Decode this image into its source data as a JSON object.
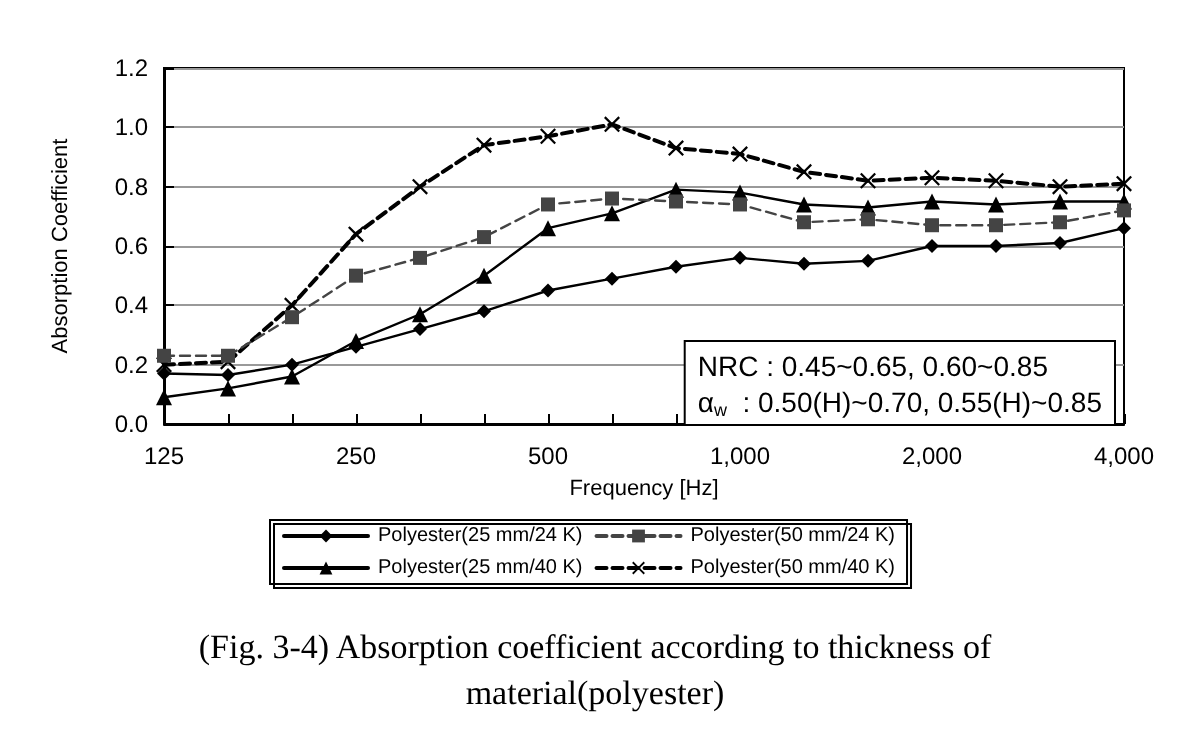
{
  "chart_data": {
    "type": "line",
    "title": "(Fig. 3-4) Absorption coefficient according to thickness of material(polyester)",
    "xlabel": "Frequency [Hz]",
    "ylabel": "Absorption Coefficient",
    "categories": [
      "125",
      null,
      null,
      "250",
      null,
      null,
      "500",
      null,
      null,
      "1,000",
      null,
      null,
      "2,000",
      null,
      null,
      "4,000"
    ],
    "series": [
      {
        "name": "Polyester(25 mm/24 K)",
        "color": "#000000",
        "marker": "diamond",
        "line_style": "solid",
        "values": [
          0.17,
          0.165,
          0.2,
          0.26,
          0.32,
          0.38,
          0.45,
          0.49,
          0.53,
          0.56,
          0.54,
          0.55,
          0.6,
          0.6,
          0.61,
          0.66
        ]
      },
      {
        "name": "Polyester(50 mm/24 K)",
        "color": "#444444",
        "marker": "square",
        "line_style": "dashed",
        "values": [
          0.23,
          0.23,
          0.36,
          0.5,
          0.56,
          0.63,
          0.74,
          0.76,
          0.75,
          0.74,
          0.68,
          0.69,
          0.67,
          0.67,
          0.68,
          0.72
        ]
      },
      {
        "name": "Polyester(25 mm/40 K)",
        "color": "#000000",
        "marker": "triangle",
        "line_style": "solid",
        "values": [
          0.09,
          0.12,
          0.16,
          0.28,
          0.37,
          0.5,
          0.66,
          0.71,
          0.79,
          0.78,
          0.74,
          0.73,
          0.75,
          0.74,
          0.75,
          0.75
        ]
      },
      {
        "name": "Polyester(50 mm/40 K)",
        "color": "#000000",
        "marker": "cross",
        "line_style": "dashed",
        "values": [
          0.2,
          0.21,
          0.4,
          0.64,
          0.8,
          0.94,
          0.97,
          1.01,
          0.93,
          0.91,
          0.85,
          0.82,
          0.83,
          0.82,
          0.8,
          0.81
        ]
      }
    ],
    "ylim": [
      0,
      1.2
    ],
    "yticks": [
      {
        "value": 0,
        "label": "0.0"
      },
      {
        "value": 0.2,
        "label": "0.2"
      },
      {
        "value": 0.4,
        "label": "0.4"
      },
      {
        "value": 0.6,
        "label": "0.6"
      },
      {
        "value": 0.8,
        "label": "0.8"
      },
      {
        "value": 1.0,
        "label": "1.0"
      },
      {
        "value": 1.2,
        "label": "1.2"
      }
    ],
    "grid": "y",
    "legend": "bottom",
    "annotations": [
      "NRC : 0.45~0.65, 0.60~0.85",
      "α$_{w}$  : 0.50(H)~0.70, 0.55(H)~0.85"
    ]
  }
}
